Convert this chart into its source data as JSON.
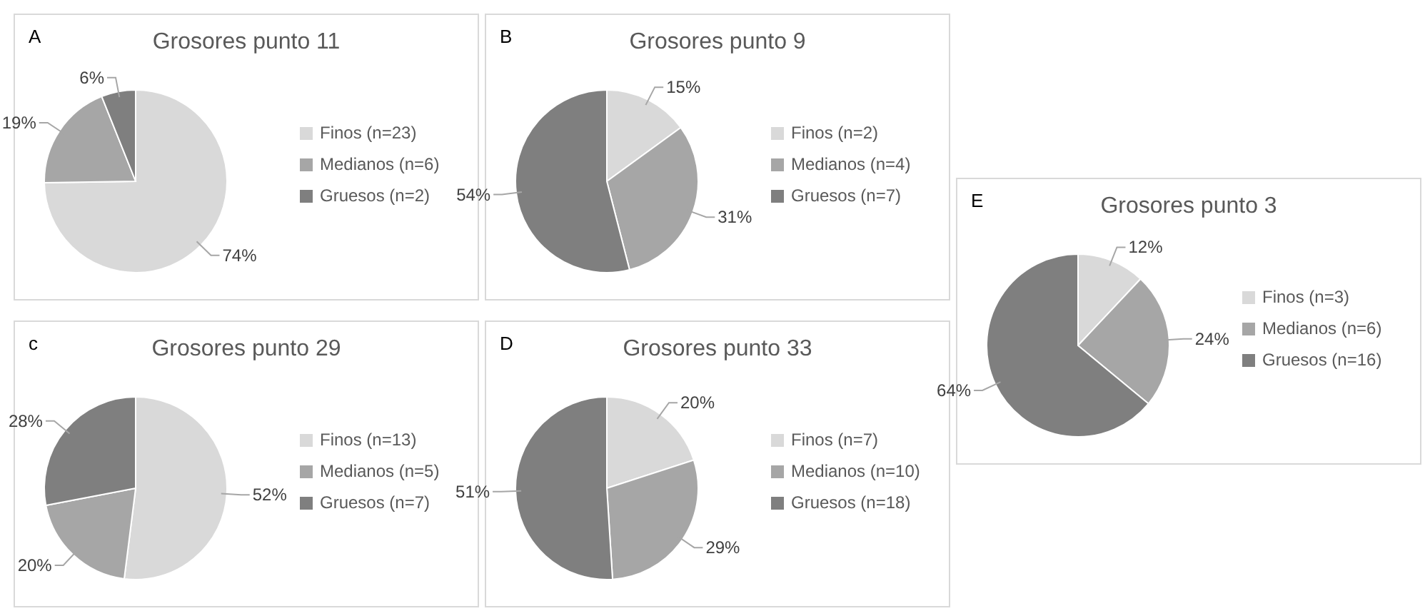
{
  "chart_data": [
    {
      "type": "pie",
      "title": "Grosores punto 11",
      "annotations": [
        "A"
      ],
      "categories": [
        "Finos (n=23)",
        "Medianos (n=6)",
        "Gruesos (n=2)"
      ],
      "values": [
        74,
        19,
        6
      ],
      "value_labels": [
        "74%",
        "19%",
        "6%"
      ],
      "colors": [
        "#d9d9d9",
        "#a6a6a6",
        "#7f7f7f"
      ],
      "legend": "right"
    },
    {
      "type": "pie",
      "title": "Grosores punto 9",
      "annotations": [
        "B"
      ],
      "categories": [
        "Finos (n=2)",
        "Medianos (n=4)",
        "Gruesos (n=7)"
      ],
      "values": [
        15,
        31,
        54
      ],
      "value_labels": [
        "15%",
        "31%",
        "54%"
      ],
      "colors": [
        "#d9d9d9",
        "#a6a6a6",
        "#7f7f7f"
      ],
      "legend": "right"
    },
    {
      "type": "pie",
      "title": "Grosores punto 29",
      "annotations": [
        "c"
      ],
      "categories": [
        "Finos (n=13)",
        "Medianos (n=5)",
        "Gruesos (n=7)"
      ],
      "values": [
        52,
        20,
        28
      ],
      "value_labels": [
        "52%",
        "20%",
        "28%"
      ],
      "colors": [
        "#d9d9d9",
        "#a6a6a6",
        "#7f7f7f"
      ],
      "legend": "right"
    },
    {
      "type": "pie",
      "title": "Grosores punto 33",
      "annotations": [
        "D"
      ],
      "categories": [
        "Finos (n=7)",
        "Medianos (n=10)",
        "Gruesos (n=18)"
      ],
      "values": [
        20,
        29,
        51
      ],
      "value_labels": [
        "20%",
        "29%",
        "51%"
      ],
      "colors": [
        "#d9d9d9",
        "#a6a6a6",
        "#7f7f7f"
      ],
      "legend": "right"
    },
    {
      "type": "pie",
      "title": "Grosores punto 3",
      "annotations": [
        "E"
      ],
      "categories": [
        "Finos (n=3)",
        "Medianos (n=6)",
        "Gruesos (n=16)"
      ],
      "values": [
        12,
        24,
        64
      ],
      "value_labels": [
        "12%",
        "24%",
        "64%"
      ],
      "colors": [
        "#d9d9d9",
        "#a6a6a6",
        "#7f7f7f"
      ],
      "legend": "right"
    }
  ]
}
